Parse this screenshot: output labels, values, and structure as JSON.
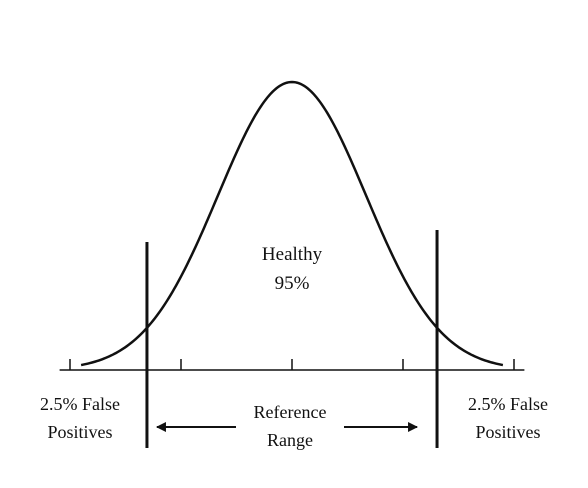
{
  "chart_data": {
    "type": "area",
    "title": "",
    "xlabel": "",
    "ylabel": "",
    "distribution": "normal",
    "mean": 0,
    "sd": 1,
    "xlim": [
      -3.1,
      3.1
    ],
    "x_ticks": [
      -3,
      -1.5,
      0,
      1.5,
      3
    ],
    "cutoffs": [
      -1.96,
      1.96
    ],
    "annotations": {
      "center_line1": "Healthy",
      "center_line2": "95%",
      "left_line1": "2.5% False",
      "left_line2": "Positives",
      "right_line1": "2.5% False",
      "right_line2": "Positives",
      "range_line1": "Reference",
      "range_line2": "Range"
    }
  },
  "colors": {
    "line": "#111111",
    "background": "#ffffff"
  }
}
